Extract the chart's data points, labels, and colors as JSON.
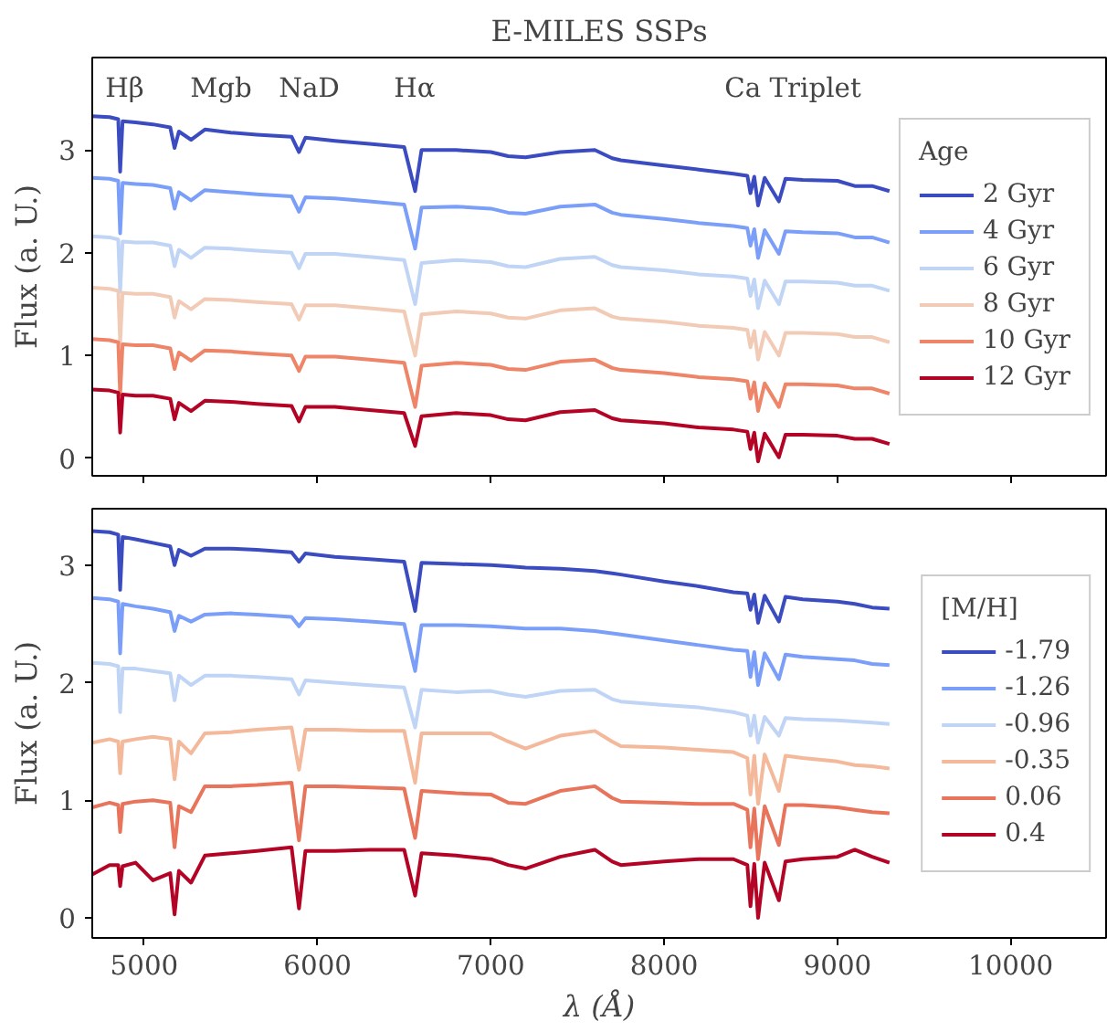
{
  "chart_data": [
    {
      "type": "line",
      "title": "E-MILES SSPs",
      "ylabel": "Flux (a. U.)",
      "legend_title": "Age",
      "legend": "right",
      "tick_labels": "y",
      "xlim": [
        4700,
        10550
      ],
      "xticks": [
        5000,
        6000,
        7000,
        8000,
        9000,
        10000
      ],
      "ylim": [
        -0.17,
        3.9
      ],
      "yticks": [
        0,
        1,
        2,
        3
      ],
      "annotations": [
        "Hβ",
        "Mgb",
        "NaD",
        "Hα",
        "Ca Triplet"
      ],
      "x": [
        4700,
        4800,
        4850,
        4861,
        4875,
        4950,
        5050,
        5150,
        5175,
        5200,
        5270,
        5350,
        5500,
        5650,
        5850,
        5893,
        5930,
        6100,
        6300,
        6500,
        6563,
        6600,
        6800,
        7000,
        7100,
        7200,
        7400,
        7600,
        7700,
        7750,
        8000,
        8200,
        8400,
        8480,
        8498,
        8520,
        8542,
        8580,
        8662,
        8700,
        8800,
        9000,
        9100,
        9200,
        9300
      ],
      "series": [
        {
          "name": "2 Gyr",
          "color": "#3b4cc0",
          "values": [
            3.33,
            3.32,
            3.3,
            2.79,
            3.28,
            3.27,
            3.25,
            3.22,
            3.02,
            3.18,
            3.1,
            3.2,
            3.17,
            3.15,
            3.13,
            2.98,
            3.12,
            3.09,
            3.06,
            3.03,
            2.6,
            3.0,
            3.0,
            2.98,
            2.94,
            2.93,
            2.98,
            3.0,
            2.92,
            2.9,
            2.85,
            2.81,
            2.77,
            2.75,
            2.58,
            2.74,
            2.46,
            2.73,
            2.5,
            2.72,
            2.71,
            2.7,
            2.65,
            2.65,
            2.6
          ]
        },
        {
          "name": "4 Gyr",
          "color": "#7b9ff9",
          "values": [
            2.73,
            2.72,
            2.7,
            2.19,
            2.68,
            2.67,
            2.66,
            2.63,
            2.43,
            2.59,
            2.51,
            2.61,
            2.59,
            2.57,
            2.55,
            2.4,
            2.54,
            2.53,
            2.5,
            2.47,
            2.04,
            2.44,
            2.45,
            2.43,
            2.39,
            2.38,
            2.45,
            2.47,
            2.39,
            2.37,
            2.33,
            2.29,
            2.26,
            2.24,
            2.07,
            2.23,
            1.95,
            2.22,
            1.99,
            2.21,
            2.2,
            2.19,
            2.15,
            2.15,
            2.1
          ]
        },
        {
          "name": "6 Gyr",
          "color": "#c0d4f5",
          "values": [
            2.16,
            2.15,
            2.13,
            1.62,
            2.11,
            2.1,
            2.1,
            2.07,
            1.87,
            2.03,
            1.95,
            2.05,
            2.04,
            2.02,
            2.0,
            1.85,
            1.99,
            1.99,
            1.96,
            1.93,
            1.5,
            1.9,
            1.93,
            1.91,
            1.87,
            1.86,
            1.94,
            1.96,
            1.88,
            1.86,
            1.83,
            1.79,
            1.77,
            1.75,
            1.58,
            1.74,
            1.46,
            1.73,
            1.5,
            1.72,
            1.72,
            1.71,
            1.68,
            1.68,
            1.63
          ]
        },
        {
          "name": "8 Gyr",
          "color": "#f2cbb7",
          "values": [
            1.66,
            1.65,
            1.63,
            1.12,
            1.61,
            1.6,
            1.6,
            1.57,
            1.37,
            1.53,
            1.45,
            1.55,
            1.54,
            1.52,
            1.5,
            1.35,
            1.49,
            1.49,
            1.46,
            1.43,
            1.0,
            1.4,
            1.43,
            1.41,
            1.37,
            1.36,
            1.44,
            1.46,
            1.38,
            1.36,
            1.33,
            1.29,
            1.27,
            1.25,
            1.08,
            1.24,
            0.96,
            1.23,
            1.0,
            1.22,
            1.22,
            1.21,
            1.18,
            1.18,
            1.13
          ]
        },
        {
          "name": "10 Gyr",
          "color": "#ee8468",
          "values": [
            1.16,
            1.15,
            1.13,
            0.62,
            1.11,
            1.1,
            1.1,
            1.07,
            0.87,
            1.03,
            0.95,
            1.05,
            1.04,
            1.02,
            1.0,
            0.85,
            0.99,
            0.99,
            0.96,
            0.93,
            0.5,
            0.9,
            0.93,
            0.91,
            0.87,
            0.86,
            0.94,
            0.96,
            0.88,
            0.86,
            0.83,
            0.79,
            0.77,
            0.75,
            0.58,
            0.74,
            0.46,
            0.73,
            0.5,
            0.72,
            0.72,
            0.71,
            0.68,
            0.68,
            0.63
          ]
        },
        {
          "name": "12 Gyr",
          "color": "#b40426",
          "values": [
            0.67,
            0.66,
            0.64,
            0.25,
            0.62,
            0.61,
            0.61,
            0.58,
            0.38,
            0.54,
            0.46,
            0.56,
            0.55,
            0.53,
            0.51,
            0.36,
            0.5,
            0.5,
            0.47,
            0.44,
            0.12,
            0.41,
            0.44,
            0.42,
            0.38,
            0.37,
            0.45,
            0.47,
            0.39,
            0.37,
            0.34,
            0.3,
            0.28,
            0.26,
            0.09,
            0.25,
            -0.03,
            0.24,
            0.01,
            0.23,
            0.23,
            0.22,
            0.19,
            0.19,
            0.14
          ]
        }
      ]
    },
    {
      "type": "line",
      "xlabel": "λ (Å)",
      "ylabel": "Flux (a. U.)",
      "legend_title": "[M/H]",
      "legend": "right",
      "xlim": [
        4700,
        10550
      ],
      "xticks": [
        5000,
        6000,
        7000,
        8000,
        9000,
        10000
      ],
      "ylim": [
        -0.17,
        3.48
      ],
      "yticks": [
        0,
        1,
        2,
        3
      ],
      "x": [
        4700,
        4800,
        4850,
        4861,
        4875,
        4950,
        5050,
        5150,
        5175,
        5200,
        5270,
        5350,
        5500,
        5650,
        5850,
        5893,
        5930,
        6100,
        6300,
        6500,
        6563,
        6600,
        6800,
        7000,
        7100,
        7200,
        7400,
        7600,
        7700,
        7750,
        8000,
        8200,
        8400,
        8480,
        8498,
        8520,
        8542,
        8580,
        8662,
        8700,
        8800,
        9000,
        9100,
        9200,
        9300
      ],
      "series": [
        {
          "name": "-1.79",
          "color": "#3b4cc0",
          "values": [
            3.29,
            3.28,
            3.26,
            2.79,
            3.24,
            3.22,
            3.19,
            3.16,
            3.0,
            3.13,
            3.08,
            3.14,
            3.14,
            3.13,
            3.11,
            3.03,
            3.1,
            3.07,
            3.05,
            3.03,
            2.61,
            3.02,
            3.01,
            3.0,
            2.99,
            2.98,
            2.97,
            2.95,
            2.93,
            2.92,
            2.86,
            2.82,
            2.77,
            2.76,
            2.62,
            2.75,
            2.51,
            2.74,
            2.52,
            2.73,
            2.71,
            2.69,
            2.67,
            2.64,
            2.63
          ]
        },
        {
          "name": "-1.26",
          "color": "#7b9ff9",
          "values": [
            2.72,
            2.71,
            2.69,
            2.25,
            2.67,
            2.65,
            2.63,
            2.6,
            2.44,
            2.57,
            2.52,
            2.58,
            2.59,
            2.58,
            2.56,
            2.48,
            2.55,
            2.54,
            2.52,
            2.5,
            2.1,
            2.49,
            2.49,
            2.48,
            2.47,
            2.46,
            2.46,
            2.44,
            2.42,
            2.41,
            2.36,
            2.32,
            2.28,
            2.27,
            2.05,
            2.26,
            1.98,
            2.25,
            2.03,
            2.24,
            2.22,
            2.2,
            2.19,
            2.16,
            2.15
          ]
        },
        {
          "name": "-0.96",
          "color": "#c0d4f5",
          "values": [
            2.17,
            2.16,
            2.14,
            1.75,
            2.12,
            2.12,
            2.1,
            2.08,
            1.85,
            2.06,
            1.98,
            2.06,
            2.06,
            2.05,
            2.03,
            1.9,
            2.02,
            2.0,
            1.98,
            1.96,
            1.62,
            1.94,
            1.92,
            1.93,
            1.9,
            1.88,
            1.93,
            1.94,
            1.86,
            1.84,
            1.81,
            1.79,
            1.75,
            1.72,
            1.55,
            1.72,
            1.49,
            1.71,
            1.55,
            1.7,
            1.69,
            1.68,
            1.67,
            1.66,
            1.65
          ]
        },
        {
          "name": "-0.35",
          "color": "#f4b89b",
          "values": [
            1.49,
            1.52,
            1.5,
            1.23,
            1.5,
            1.52,
            1.54,
            1.52,
            1.18,
            1.5,
            1.4,
            1.57,
            1.58,
            1.6,
            1.62,
            1.26,
            1.6,
            1.6,
            1.59,
            1.59,
            1.15,
            1.57,
            1.57,
            1.57,
            1.5,
            1.44,
            1.55,
            1.59,
            1.5,
            1.46,
            1.45,
            1.43,
            1.41,
            1.36,
            1.05,
            1.38,
            0.97,
            1.39,
            1.08,
            1.38,
            1.36,
            1.33,
            1.3,
            1.29,
            1.27
          ]
        },
        {
          "name": "0.06",
          "color": "#e7745b",
          "values": [
            0.94,
            0.98,
            0.96,
            0.73,
            0.97,
            0.99,
            1.0,
            0.98,
            0.6,
            0.95,
            0.9,
            1.12,
            1.12,
            1.13,
            1.15,
            0.66,
            1.12,
            1.12,
            1.11,
            1.1,
            0.68,
            1.08,
            1.06,
            1.05,
            0.98,
            0.97,
            1.08,
            1.12,
            1.02,
            0.99,
            0.98,
            0.97,
            0.97,
            0.92,
            0.6,
            0.93,
            0.5,
            0.95,
            0.62,
            0.96,
            0.96,
            0.94,
            0.92,
            0.9,
            0.89
          ]
        },
        {
          "name": "0.4",
          "color": "#b40426",
          "values": [
            0.37,
            0.45,
            0.45,
            0.27,
            0.44,
            0.47,
            0.32,
            0.38,
            0.03,
            0.4,
            0.3,
            0.53,
            0.55,
            0.57,
            0.6,
            0.08,
            0.57,
            0.57,
            0.58,
            0.58,
            0.19,
            0.55,
            0.53,
            0.5,
            0.45,
            0.42,
            0.52,
            0.58,
            0.48,
            0.45,
            0.48,
            0.5,
            0.5,
            0.45,
            0.1,
            0.46,
            0.0,
            0.47,
            0.15,
            0.48,
            0.5,
            0.52,
            0.58,
            0.52,
            0.47
          ]
        }
      ]
    }
  ]
}
